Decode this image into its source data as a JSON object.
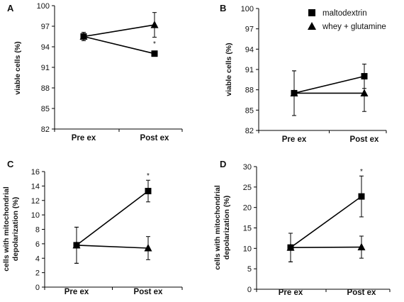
{
  "legend": [
    {
      "label": "maltodextrin",
      "marker": "square"
    },
    {
      "label": "whey + glutamine",
      "marker": "triangle"
    }
  ],
  "chart_data": [
    {
      "panel": "A",
      "type": "line",
      "categories": [
        "Pre ex",
        "Post ex"
      ],
      "ylabel": [
        "viable cells (%)"
      ],
      "ylim": [
        82,
        100
      ],
      "yticks": [
        82,
        85,
        88,
        91,
        94,
        97,
        100
      ],
      "series": [
        {
          "name": "maltodextrin",
          "marker": "square",
          "values": [
            95.5,
            93.0
          ],
          "err": [
            0.6,
            0
          ]
        },
        {
          "name": "whey + glutamine",
          "marker": "triangle",
          "values": [
            95.5,
            97.2
          ],
          "err": [
            0.6,
            1.8
          ]
        }
      ],
      "annotations": [
        {
          "category": "Post ex",
          "y": 94.5,
          "text": "*"
        }
      ]
    },
    {
      "panel": "B",
      "type": "line",
      "categories": [
        "Pre ex",
        "Post ex"
      ],
      "ylabel": [
        "viable cells (%)"
      ],
      "ylim": [
        82,
        100
      ],
      "yticks": [
        82,
        85,
        88,
        91,
        94,
        97,
        100
      ],
      "series": [
        {
          "name": "maltodextrin",
          "marker": "square",
          "values": [
            87.5,
            90.0
          ],
          "err": [
            3.3,
            1.8
          ]
        },
        {
          "name": "whey + glutamine",
          "marker": "triangle",
          "values": [
            87.5,
            87.5
          ],
          "err": [
            3.3,
            2.7
          ]
        }
      ],
      "annotations": []
    },
    {
      "panel": "C",
      "type": "line",
      "categories": [
        "Pre ex",
        "Post ex"
      ],
      "ylabel": [
        "cells with mitochondrial",
        "depolarization (%)"
      ],
      "ylim": [
        0,
        16
      ],
      "yticks": [
        0,
        2,
        4,
        6,
        8,
        10,
        12,
        14,
        16
      ],
      "series": [
        {
          "name": "maltodextrin",
          "marker": "square",
          "values": [
            5.8,
            13.3
          ],
          "err": [
            2.5,
            1.5
          ]
        },
        {
          "name": "whey + glutamine",
          "marker": "triangle",
          "values": [
            5.8,
            5.4
          ],
          "err": [
            2.5,
            1.6
          ]
        }
      ],
      "annotations": [
        {
          "category": "Post ex",
          "y": 15.5,
          "text": "*"
        }
      ]
    },
    {
      "panel": "D",
      "type": "line",
      "categories": [
        "Pre ex",
        "Post ex"
      ],
      "ylabel": [
        "cells with mitochondrial",
        "depolarization (%)"
      ],
      "ylim": [
        0,
        30
      ],
      "yticks": [
        0,
        5,
        10,
        15,
        20,
        25,
        30
      ],
      "series": [
        {
          "name": "maltodextrin",
          "marker": "square",
          "values": [
            10.2,
            22.7
          ],
          "err": [
            3.5,
            5.0
          ]
        },
        {
          "name": "whey + glutamine",
          "marker": "triangle",
          "values": [
            10.2,
            10.3
          ],
          "err": [
            3.5,
            2.7
          ]
        }
      ],
      "annotations": [
        {
          "category": "Post ex",
          "y": 29.0,
          "text": "*"
        }
      ]
    }
  ]
}
